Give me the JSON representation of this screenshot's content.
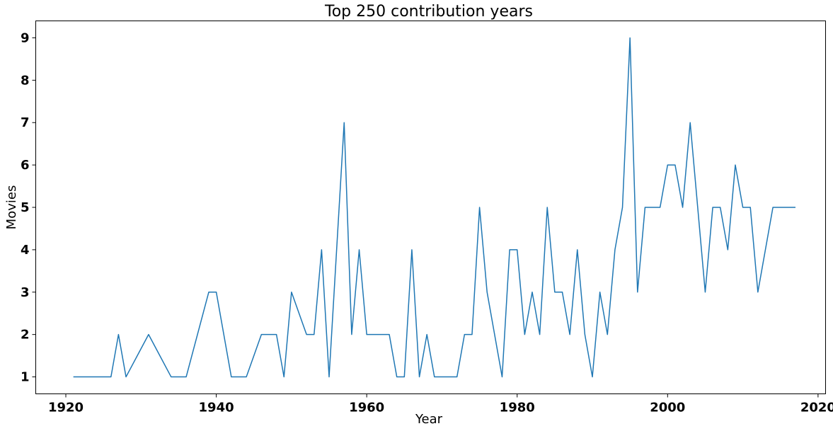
{
  "chart_data": {
    "type": "line",
    "title": "Top 250 contribution years",
    "xlabel": "Year",
    "ylabel": "Movies",
    "xlim": [
      1916,
      2021
    ],
    "ylim": [
      0.6,
      9.4
    ],
    "xticks": [
      1920,
      1940,
      1960,
      1980,
      2000,
      2020
    ],
    "yticks": [
      1,
      2,
      3,
      4,
      5,
      6,
      7,
      8,
      9
    ],
    "grid": false,
    "colors": {
      "line": "#1f77b4"
    },
    "series": [
      {
        "x": [
          1921,
          1922,
          1923,
          1924,
          1925,
          1926,
          1927,
          1928,
          1931,
          1934,
          1935,
          1936,
          1939,
          1940,
          1942,
          1943,
          1944,
          1946,
          1947,
          1948,
          1949,
          1950,
          1952,
          1953,
          1954,
          1955,
          1957,
          1958,
          1959,
          1960,
          1961,
          1962,
          1963,
          1964,
          1965,
          1966,
          1967,
          1968,
          1969,
          1970,
          1971,
          1972,
          1973,
          1974,
          1975,
          1976,
          1978,
          1979,
          1980,
          1981,
          1982,
          1983,
          1984,
          1985,
          1986,
          1987,
          1988,
          1989,
          1990,
          1991,
          1992,
          1993,
          1994,
          1995,
          1996,
          1997,
          1998,
          1999,
          2000,
          2001,
          2002,
          2003,
          2005,
          2006,
          2007,
          2008,
          2009,
          2010,
          2011,
          2012,
          2014,
          2015,
          2016,
          2017
        ],
        "values": [
          1,
          1,
          1,
          1,
          1,
          1,
          2,
          1,
          2,
          1,
          1,
          1,
          3,
          3,
          1,
          1,
          1,
          2,
          2,
          2,
          1,
          3,
          2,
          2,
          4,
          1,
          7,
          2,
          4,
          2,
          2,
          2,
          2,
          1,
          1,
          4,
          1,
          2,
          1,
          1,
          1,
          1,
          2,
          2,
          5,
          3,
          1,
          4,
          4,
          2,
          3,
          2,
          5,
          3,
          3,
          2,
          4,
          2,
          1,
          3,
          2,
          4,
          5,
          9,
          3,
          5,
          5,
          5,
          6,
          6,
          5,
          7,
          3,
          5,
          5,
          4,
          6,
          5,
          5,
          3,
          5,
          5,
          5,
          5
        ]
      }
    ]
  }
}
